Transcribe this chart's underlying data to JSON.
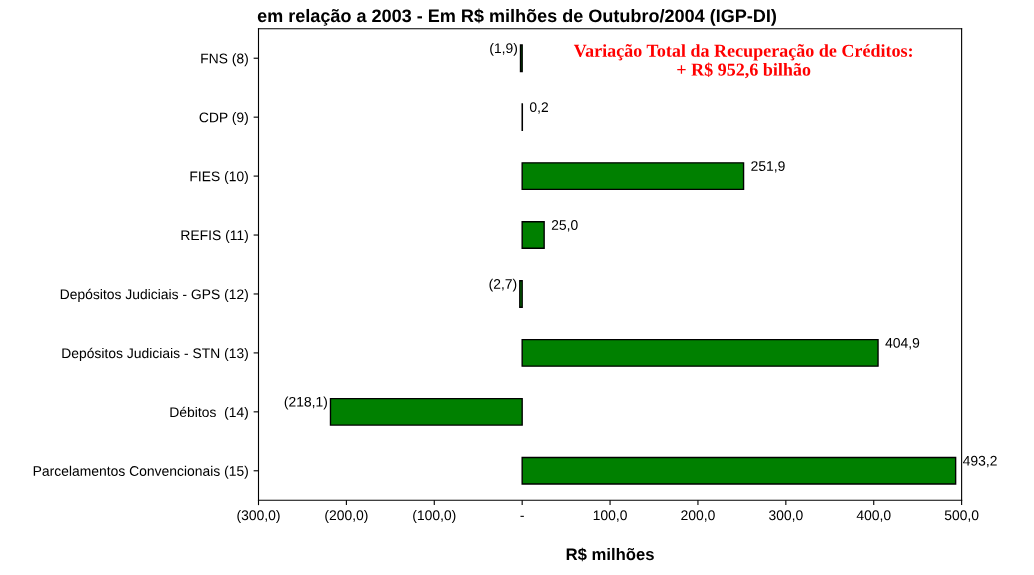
{
  "chart_data": {
    "type": "bar",
    "orientation": "horizontal",
    "title": "em relação a 2003 - Em R$ milhões de Outubro/2004 (IGP-DI)",
    "xlabel": "R$ milhões",
    "categories": [
      "FNS (8)",
      "CDP (9)",
      "FIES (10)",
      "REFIS (11)",
      "Depósitos Judiciais - GPS (12)",
      "Depósitos Judiciais - STN (13)",
      "Débitos  (14)",
      "Parcelamentos Convencionais (15)"
    ],
    "values": [
      -1.9,
      0.2,
      251.9,
      25.0,
      -2.7,
      404.9,
      -218.1,
      493.2
    ],
    "value_labels": [
      "(1,9)",
      "0,2",
      "251,9",
      "25,0",
      "(2,7)",
      "404,9",
      "(218,1)",
      "493,2"
    ],
    "color": "#008000",
    "xlim": [
      -300,
      500
    ],
    "xticks": [
      {
        "value": -300,
        "label": "(300,0)"
      },
      {
        "value": -200,
        "label": "(200,0)"
      },
      {
        "value": -100,
        "label": "(100,0)"
      },
      {
        "value": 0,
        "label": "-"
      },
      {
        "value": 100,
        "label": "100,0"
      },
      {
        "value": 200,
        "label": "200,0"
      },
      {
        "value": 300,
        "label": "300,0"
      },
      {
        "value": 400,
        "label": "400,0"
      },
      {
        "value": 500,
        "label": "500,0"
      }
    ],
    "annotations": [
      "Variação Total da Recuperação de Créditos:\n+ R$ 952,6 bilhão"
    ],
    "grid": false
  }
}
